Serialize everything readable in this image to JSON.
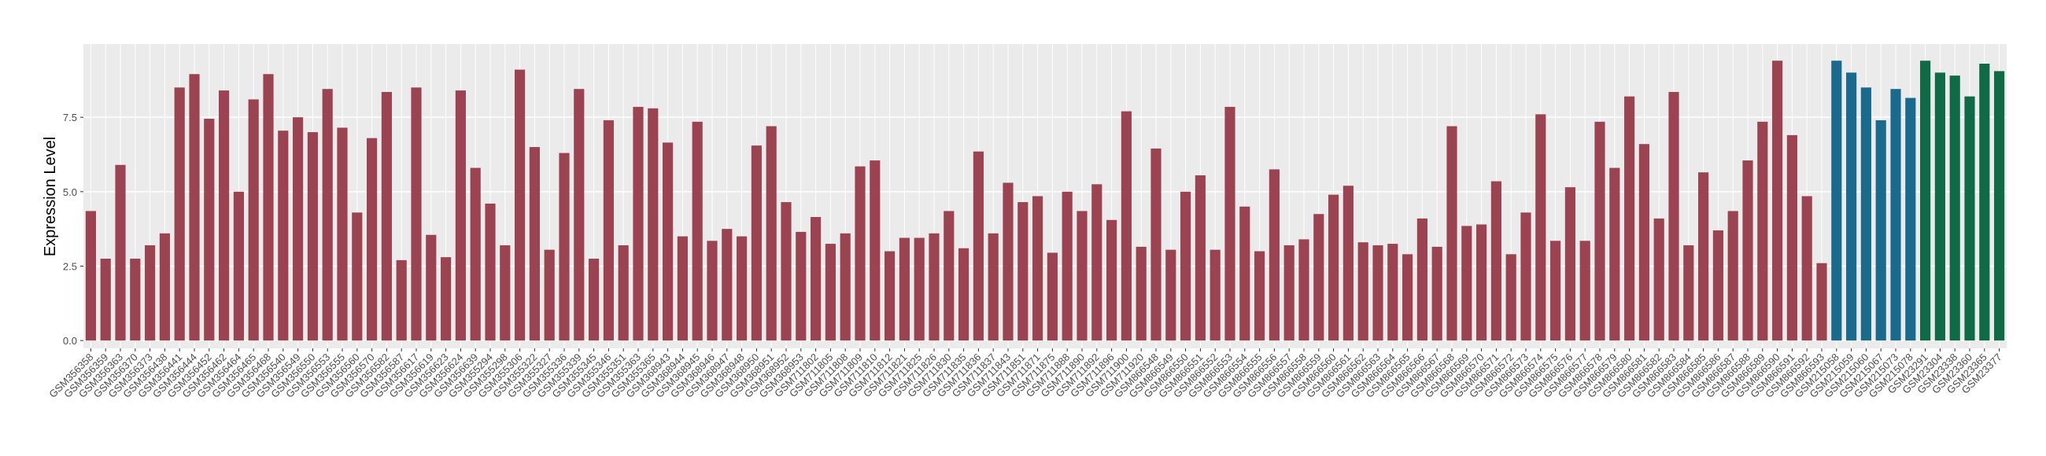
{
  "chart_data": {
    "type": "bar",
    "y_label": "Expression Level",
    "ylim": [
      -0.26,
      9.96
    ],
    "yticks": [
      {
        "value": 0,
        "label": "0.0"
      },
      2.5,
      {
        "value": 5,
        "label": "5.0"
      },
      7.5
    ],
    "grid": true,
    "series": [
      {
        "color": "#9b4350",
        "categories": [
          "GSM356358",
          "GSM356359",
          "GSM356363",
          "GSM356370",
          "GSM356373",
          "GSM356438",
          "GSM356441",
          "GSM356444",
          "GSM356452",
          "GSM356462",
          "GSM356464",
          "GSM356465",
          "GSM356468",
          "GSM356540",
          "GSM356549",
          "GSM356550",
          "GSM356553",
          "GSM356555",
          "GSM356560",
          "GSM356570",
          "GSM356582",
          "GSM356587",
          "GSM356617",
          "GSM356619",
          "GSM356623",
          "GSM356624",
          "GSM356639",
          "GSM355294",
          "GSM355298",
          "GSM355306",
          "GSM355322",
          "GSM355327",
          "GSM355336",
          "GSM355339",
          "GSM355345",
          "GSM355346",
          "GSM355351",
          "GSM355363",
          "GSM355365",
          "GSM368943",
          "GSM368944",
          "GSM368945",
          "GSM368946",
          "GSM368947",
          "GSM368948",
          "GSM368950",
          "GSM368951",
          "GSM368952",
          "GSM368953",
          "GSM711802",
          "GSM711805",
          "GSM711808",
          "GSM711809",
          "GSM711810",
          "GSM711812",
          "GSM711821",
          "GSM711825",
          "GSM711826",
          "GSM711830",
          "GSM711835",
          "GSM711836",
          "GSM711837",
          "GSM711843",
          "GSM711851",
          "GSM711871",
          "GSM711875",
          "GSM711888",
          "GSM711890",
          "GSM711892",
          "GSM711896",
          "GSM711900",
          "GSM711920",
          "GSM866548",
          "GSM866549",
          "GSM866550",
          "GSM866551",
          "GSM866552",
          "GSM866553",
          "GSM866554",
          "GSM866555",
          "GSM866556",
          "GSM866557",
          "GSM866558",
          "GSM866559",
          "GSM866560",
          "GSM866561",
          "GSM866562",
          "GSM866563",
          "GSM866564",
          "GSM866565",
          "GSM866566",
          "GSM866567",
          "GSM866568",
          "GSM866569",
          "GSM866570",
          "GSM866571",
          "GSM866572",
          "GSM866573",
          "GSM866574",
          "GSM866575",
          "GSM866576",
          "GSM866577",
          "GSM866578",
          "GSM866579",
          "GSM866580",
          "GSM866581",
          "GSM866582",
          "GSM866583",
          "GSM866584",
          "GSM866585",
          "GSM866586",
          "GSM866587",
          "GSM866588",
          "GSM866589",
          "GSM866590",
          "GSM866591",
          "GSM866592",
          "GSM866593"
        ],
        "values": [
          4.35,
          2.75,
          5.9,
          2.75,
          3.2,
          3.6,
          8.5,
          8.95,
          7.45,
          8.4,
          5.0,
          8.1,
          8.95,
          7.05,
          7.5,
          7.0,
          8.45,
          7.15,
          4.3,
          6.8,
          8.35,
          2.7,
          8.5,
          3.55,
          2.8,
          8.4,
          5.8,
          4.6,
          3.2,
          9.1,
          6.5,
          3.05,
          6.3,
          8.45,
          2.75,
          7.4,
          3.2,
          7.85,
          7.8,
          6.65,
          3.5,
          7.35,
          3.35,
          3.75,
          3.5,
          6.55,
          7.2,
          4.65,
          3.65,
          4.15,
          3.25,
          3.6,
          5.85,
          6.05,
          3.0,
          3.45,
          3.45,
          3.6,
          4.35,
          3.1,
          6.35,
          3.6,
          5.3,
          4.65,
          4.85,
          2.95,
          5.0,
          4.35,
          5.25,
          4.05,
          7.7,
          3.15,
          6.45,
          3.05,
          5.0,
          5.55,
          3.05,
          7.85,
          4.5,
          3.0,
          5.75,
          3.2,
          3.4,
          4.25,
          4.9,
          5.2,
          3.3,
          3.2,
          3.25,
          2.9,
          4.1,
          3.15,
          7.2,
          3.85,
          3.9,
          5.35,
          2.9,
          4.3,
          7.6,
          3.35,
          5.15,
          3.35,
          7.35,
          5.8,
          8.2,
          6.6,
          4.1,
          8.35,
          3.2,
          5.65,
          3.7,
          4.35,
          6.05,
          7.35,
          9.4,
          6.9,
          4.85,
          2.6
        ]
      },
      {
        "color": "#1a6a8e",
        "categories": [
          "GSM215058",
          "GSM215059",
          "GSM215060",
          "GSM215067",
          "GSM215073",
          "GSM215078"
        ],
        "values": [
          9.4,
          9.0,
          8.5,
          7.4,
          8.45,
          8.15
        ]
      },
      {
        "color": "#0f6b45",
        "categories": [
          "GSM23291",
          "GSM23304",
          "GSM23338",
          "GSM23360",
          "GSM23365",
          "GSM23377"
        ],
        "values": [
          9.4,
          9.0,
          8.9,
          8.2,
          9.3,
          9.05
        ]
      }
    ]
  }
}
